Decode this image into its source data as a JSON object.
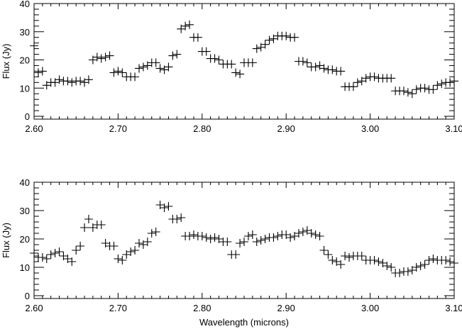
{
  "chart_data": [
    {
      "type": "scatter",
      "marker": "plus",
      "color": "#000000",
      "xlabel": "",
      "ylabel": "Flux (Jy)",
      "xlim": [
        2.6,
        3.1
      ],
      "ylim": [
        -1,
        40
      ],
      "xticks": [
        "2.60",
        "2.70",
        "2.80",
        "2.90",
        "3.00",
        "3.10"
      ],
      "yticks": [
        "0",
        "10",
        "20",
        "30",
        "40"
      ],
      "grid": false,
      "points": [
        [
          2.6,
          25
        ],
        [
          2.605,
          15.5
        ],
        [
          2.61,
          16
        ],
        [
          2.615,
          11
        ],
        [
          2.62,
          12
        ],
        [
          2.625,
          12
        ],
        [
          2.63,
          13
        ],
        [
          2.635,
          12.5
        ],
        [
          2.64,
          12.5
        ],
        [
          2.645,
          12
        ],
        [
          2.65,
          12.5
        ],
        [
          2.655,
          12.5
        ],
        [
          2.66,
          12
        ],
        [
          2.665,
          13
        ],
        [
          2.67,
          20
        ],
        [
          2.675,
          21
        ],
        [
          2.68,
          20.5
        ],
        [
          2.685,
          21
        ],
        [
          2.69,
          21.5
        ],
        [
          2.695,
          15.5
        ],
        [
          2.7,
          16
        ],
        [
          2.705,
          15.5
        ],
        [
          2.71,
          14
        ],
        [
          2.715,
          14
        ],
        [
          2.72,
          14
        ],
        [
          2.725,
          17
        ],
        [
          2.73,
          17.5
        ],
        [
          2.735,
          18
        ],
        [
          2.74,
          19
        ],
        [
          2.745,
          19
        ],
        [
          2.75,
          17
        ],
        [
          2.755,
          16.5
        ],
        [
          2.76,
          17.5
        ],
        [
          2.765,
          21.5
        ],
        [
          2.77,
          22
        ],
        [
          2.775,
          31
        ],
        [
          2.78,
          32
        ],
        [
          2.785,
          32.5
        ],
        [
          2.79,
          28
        ],
        [
          2.795,
          28
        ],
        [
          2.8,
          23
        ],
        [
          2.805,
          23
        ],
        [
          2.81,
          20.5
        ],
        [
          2.815,
          20.5
        ],
        [
          2.82,
          20
        ],
        [
          2.825,
          18.5
        ],
        [
          2.83,
          18.5
        ],
        [
          2.835,
          18.5
        ],
        [
          2.84,
          15.5
        ],
        [
          2.845,
          15
        ],
        [
          2.85,
          19
        ],
        [
          2.855,
          19
        ],
        [
          2.86,
          19
        ],
        [
          2.865,
          24
        ],
        [
          2.87,
          24.5
        ],
        [
          2.875,
          25.5
        ],
        [
          2.88,
          27
        ],
        [
          2.885,
          27.5
        ],
        [
          2.89,
          28.5
        ],
        [
          2.895,
          28.5
        ],
        [
          2.9,
          28.5
        ],
        [
          2.905,
          28
        ],
        [
          2.91,
          28
        ],
        [
          2.915,
          19.5
        ],
        [
          2.92,
          19.5
        ],
        [
          2.925,
          19
        ],
        [
          2.93,
          17.5
        ],
        [
          2.935,
          17.5
        ],
        [
          2.94,
          18
        ],
        [
          2.945,
          17
        ],
        [
          2.95,
          16.5
        ],
        [
          2.955,
          16.5
        ],
        [
          2.96,
          16
        ],
        [
          2.965,
          16
        ],
        [
          2.97,
          10.5
        ],
        [
          2.975,
          10.5
        ],
        [
          2.98,
          10.5
        ],
        [
          2.985,
          12
        ],
        [
          2.99,
          12.5
        ],
        [
          2.995,
          13.5
        ],
        [
          3.0,
          14
        ],
        [
          3.005,
          14
        ],
        [
          3.01,
          13.5
        ],
        [
          3.015,
          13.5
        ],
        [
          3.02,
          13.5
        ],
        [
          3.025,
          13.5
        ],
        [
          3.03,
          9
        ],
        [
          3.035,
          9
        ],
        [
          3.04,
          9
        ],
        [
          3.045,
          8.5
        ],
        [
          3.05,
          8
        ],
        [
          3.055,
          9.5
        ],
        [
          3.06,
          10
        ],
        [
          3.065,
          10
        ],
        [
          3.07,
          9.5
        ],
        [
          3.075,
          9.5
        ],
        [
          3.08,
          11
        ],
        [
          3.085,
          11.5
        ],
        [
          3.09,
          12
        ],
        [
          3.095,
          12
        ],
        [
          3.1,
          12.5
        ]
      ]
    },
    {
      "type": "scatter",
      "marker": "plus",
      "color": "#000000",
      "xlabel": "Wavelength (microns)",
      "ylabel": "Flux (Jy)",
      "xlim": [
        2.6,
        3.1
      ],
      "ylim": [
        -1,
        40
      ],
      "xticks": [
        "2.60",
        "2.70",
        "2.80",
        "2.90",
        "3.00",
        "3.10"
      ],
      "yticks": [
        "0",
        "10",
        "20",
        "30",
        "40"
      ],
      "grid": false,
      "points": [
        [
          2.6,
          15
        ],
        [
          2.605,
          13.5
        ],
        [
          2.61,
          13.5
        ],
        [
          2.615,
          13
        ],
        [
          2.62,
          14.5
        ],
        [
          2.625,
          15
        ],
        [
          2.63,
          15.5
        ],
        [
          2.635,
          14
        ],
        [
          2.64,
          13
        ],
        [
          2.645,
          12
        ],
        [
          2.65,
          16
        ],
        [
          2.655,
          17.5
        ],
        [
          2.66,
          24
        ],
        [
          2.665,
          27
        ],
        [
          2.67,
          24
        ],
        [
          2.675,
          25
        ],
        [
          2.68,
          25
        ],
        [
          2.685,
          18.5
        ],
        [
          2.69,
          17.5
        ],
        [
          2.695,
          17.5
        ],
        [
          2.7,
          13
        ],
        [
          2.705,
          12.5
        ],
        [
          2.71,
          14.5
        ],
        [
          2.715,
          15.5
        ],
        [
          2.72,
          16
        ],
        [
          2.725,
          18.5
        ],
        [
          2.73,
          18
        ],
        [
          2.735,
          19
        ],
        [
          2.74,
          22
        ],
        [
          2.745,
          22.5
        ],
        [
          2.75,
          32
        ],
        [
          2.755,
          31
        ],
        [
          2.76,
          31.5
        ],
        [
          2.765,
          27
        ],
        [
          2.77,
          27
        ],
        [
          2.775,
          27.5
        ],
        [
          2.78,
          21
        ],
        [
          2.785,
          21
        ],
        [
          2.79,
          21.5
        ],
        [
          2.795,
          21
        ],
        [
          2.8,
          21
        ],
        [
          2.805,
          20.5
        ],
        [
          2.81,
          20
        ],
        [
          2.815,
          20.5
        ],
        [
          2.82,
          20
        ],
        [
          2.825,
          19
        ],
        [
          2.83,
          19
        ],
        [
          2.835,
          14.5
        ],
        [
          2.84,
          14.5
        ],
        [
          2.845,
          18.5
        ],
        [
          2.85,
          19
        ],
        [
          2.855,
          21
        ],
        [
          2.86,
          21.5
        ],
        [
          2.865,
          19
        ],
        [
          2.87,
          19.5
        ],
        [
          2.875,
          20
        ],
        [
          2.88,
          20.5
        ],
        [
          2.885,
          20.5
        ],
        [
          2.89,
          21
        ],
        [
          2.895,
          21.5
        ],
        [
          2.9,
          21.5
        ],
        [
          2.905,
          20.5
        ],
        [
          2.91,
          21
        ],
        [
          2.915,
          22
        ],
        [
          2.92,
          22.5
        ],
        [
          2.925,
          23
        ],
        [
          2.93,
          22
        ],
        [
          2.935,
          21.5
        ],
        [
          2.94,
          21
        ],
        [
          2.945,
          16
        ],
        [
          2.95,
          14.5
        ],
        [
          2.955,
          12.5
        ],
        [
          2.96,
          12
        ],
        [
          2.965,
          11
        ],
        [
          2.97,
          14
        ],
        [
          2.975,
          13.5
        ],
        [
          2.98,
          14
        ],
        [
          2.985,
          14
        ],
        [
          2.99,
          14
        ],
        [
          2.995,
          12.5
        ],
        [
          3.0,
          12.5
        ],
        [
          3.005,
          12.5
        ],
        [
          3.01,
          12
        ],
        [
          3.015,
          11.5
        ],
        [
          3.02,
          10.5
        ],
        [
          3.025,
          10
        ],
        [
          3.03,
          8
        ],
        [
          3.035,
          8
        ],
        [
          3.04,
          8.5
        ],
        [
          3.045,
          8.5
        ],
        [
          3.05,
          9
        ],
        [
          3.055,
          10
        ],
        [
          3.06,
          10.5
        ],
        [
          3.065,
          11
        ],
        [
          3.07,
          12.5
        ],
        [
          3.075,
          13
        ],
        [
          3.08,
          12.5
        ],
        [
          3.085,
          12.5
        ],
        [
          3.09,
          12.5
        ],
        [
          3.095,
          12
        ],
        [
          3.1,
          11.5
        ]
      ]
    }
  ]
}
